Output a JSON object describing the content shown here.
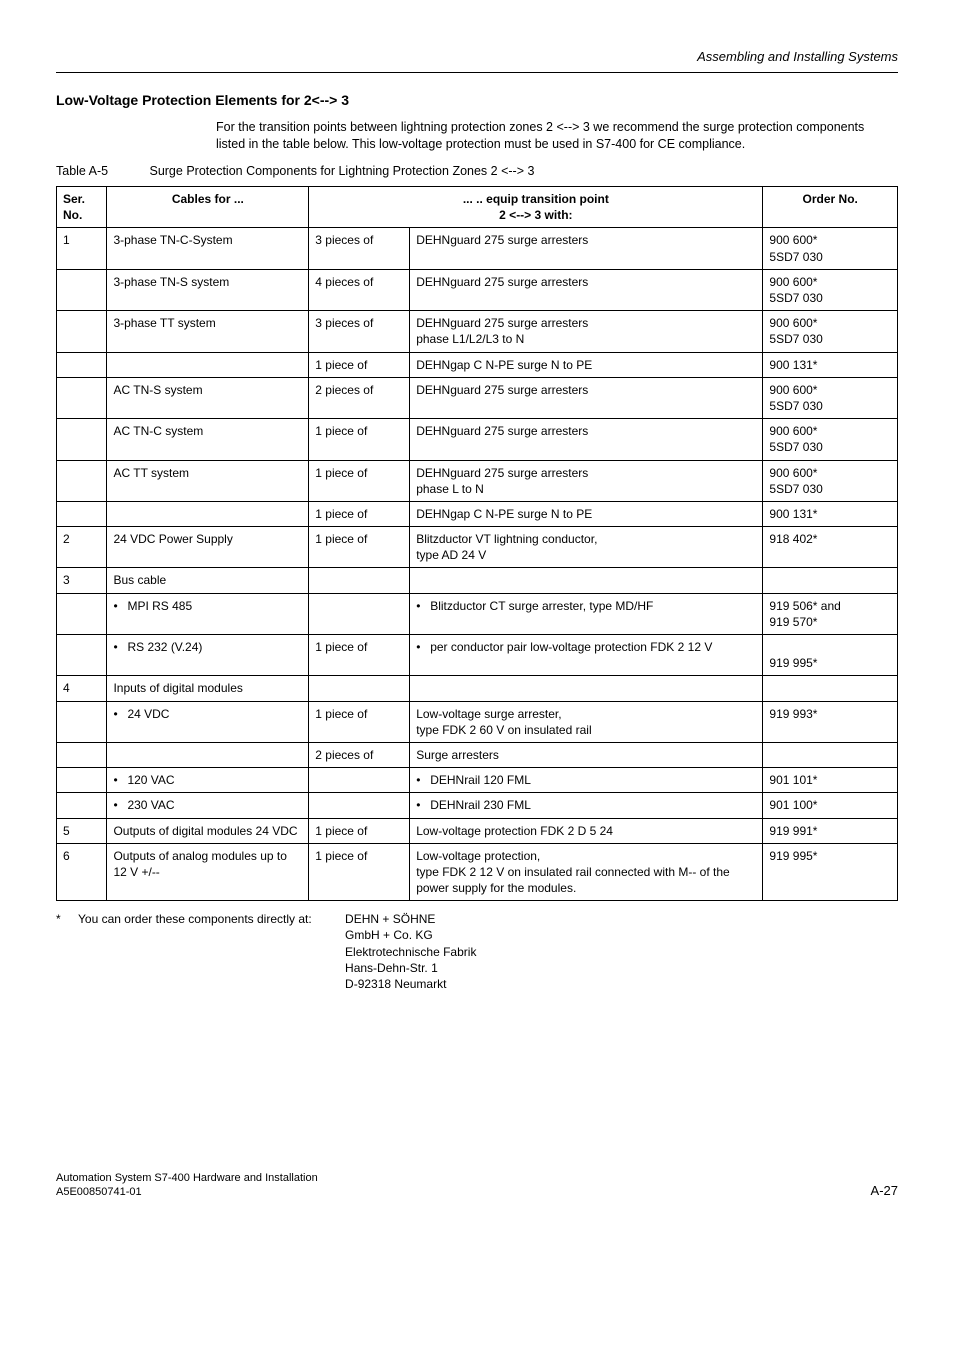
{
  "page": {
    "running_header": "Assembling and Installing Systems",
    "section_title": "Low-Voltage Protection Elements for 2<--> 3",
    "intro": "For the transition points between lightning protection zones 2 <--> 3 we recommend the surge protection components listed in the table below. This low-voltage protection must be used in S7-400 for CE compliance.",
    "table_caption_label": "Table A-5",
    "table_caption_text": "Surge Protection Components for Lightning Protection Zones 2 <--> 3",
    "footer_left_line1": "Automation System S7-400  Hardware and Installation",
    "footer_left_line2": "A5E00850741-01",
    "footer_right": "A-27"
  },
  "table": {
    "headers": {
      "ser": "Ser. No.",
      "cables": "Cables for ...",
      "equip_top": "... .. equip transition point",
      "equip_bottom": "2 <--> 3 with:",
      "order": "Order No."
    },
    "rows": [
      {
        "ser": "1",
        "cable": "3-phase TN-C-System",
        "qty": "3 pieces of",
        "desc": "DEHNguard 275 surge arresters",
        "order": "900 600*\n5SD7 030"
      },
      {
        "ser": "",
        "cable": "3-phase TN-S system",
        "qty": "4 pieces of",
        "desc": "DEHNguard 275 surge arresters",
        "order": "900 600*\n5SD7 030"
      },
      {
        "ser": "",
        "cable": "3-phase TT system",
        "qty": "3 pieces of",
        "desc": "DEHNguard 275 surge arresters\nphase L1/L2/L3 to N",
        "order": "900 600*\n5SD7 030"
      },
      {
        "ser": "",
        "cable": "",
        "qty": "1 piece of",
        "desc": "DEHNgap C N-PE surge N to PE",
        "order": "900 131*"
      },
      {
        "ser": "",
        "cable": "AC TN-S system",
        "qty": "2 pieces of",
        "desc": "DEHNguard 275 surge arresters",
        "order": "900 600*\n5SD7 030"
      },
      {
        "ser": "",
        "cable": "AC TN-C system",
        "qty": "1 piece of",
        "desc": "DEHNguard 275 surge arresters",
        "order": "900 600*\n5SD7 030"
      },
      {
        "ser": "",
        "cable": "AC TT system",
        "qty": "1 piece of",
        "desc": "DEHNguard 275 surge arresters\nphase L to N",
        "order": "900 600*\n5SD7 030"
      },
      {
        "ser": "",
        "cable": "",
        "qty": "1 piece of",
        "desc": "DEHNgap C N-PE surge N to PE",
        "order": "900 131*"
      },
      {
        "ser": "2",
        "cable": "24 VDC Power Supply",
        "qty": "1 piece of",
        "desc": "Blitzductor VT lightning conductor,\ntype AD 24 V",
        "order": "918 402*"
      },
      {
        "ser": "3",
        "cable": "Bus cable",
        "qty": "",
        "desc": "",
        "order": ""
      },
      {
        "ser": "",
        "cable_bullet": "MPI RS 485",
        "qty": "",
        "desc_bullet": "Blitzductor CT surge arrester, type MD/HF",
        "order": "919 506* and\n919 570*"
      },
      {
        "ser": "",
        "cable_bullet": "RS 232 (V.24)",
        "qty": "1 piece of",
        "desc_bullet": "per conductor pair low-voltage protection FDK 2 12 V",
        "order": "\n919 995*"
      },
      {
        "ser": "4",
        "cable": "Inputs of digital modules",
        "qty": "",
        "desc": "",
        "order": ""
      },
      {
        "ser": "",
        "cable_bullet": "24 VDC",
        "qty": "1 piece of",
        "desc": "Low-voltage surge arrester,\ntype FDK 2 60 V on insulated rail",
        "order": "919 993*"
      },
      {
        "ser": "",
        "cable": "",
        "qty": "2 pieces of",
        "desc": "Surge arresters",
        "order": ""
      },
      {
        "ser": "",
        "cable_bullet": "120 VAC",
        "qty": "",
        "desc_bullet": "DEHNrail 120 FML",
        "order": "901 101*"
      },
      {
        "ser": "",
        "cable_bullet": "230 VAC",
        "qty": "",
        "desc_bullet": "DEHNrail 230 FML",
        "order": "901 100*"
      },
      {
        "ser": "5",
        "cable": "Outputs of digital modules 24 VDC",
        "qty": "1 piece of",
        "desc": "Low-voltage protection FDK 2 D 5 24",
        "order": "919 991*"
      },
      {
        "ser": "6",
        "cable": "Outputs of analog modules up to 12 V +/--",
        "qty": "1 piece of",
        "desc": "Low-voltage protection,\ntype FDK 2 12 V on insulated rail connected with M-- of the power supply for the modules.",
        "order": "919 995*"
      }
    ]
  },
  "footnote": {
    "star": "*",
    "lead": "You can order these components directly at:",
    "address": "DEHN + SÖHNE\nGmbH + Co. KG\nElektrotechnische Fabrik\nHans-Dehn-Str. 1\nD-92318 Neumarkt"
  }
}
